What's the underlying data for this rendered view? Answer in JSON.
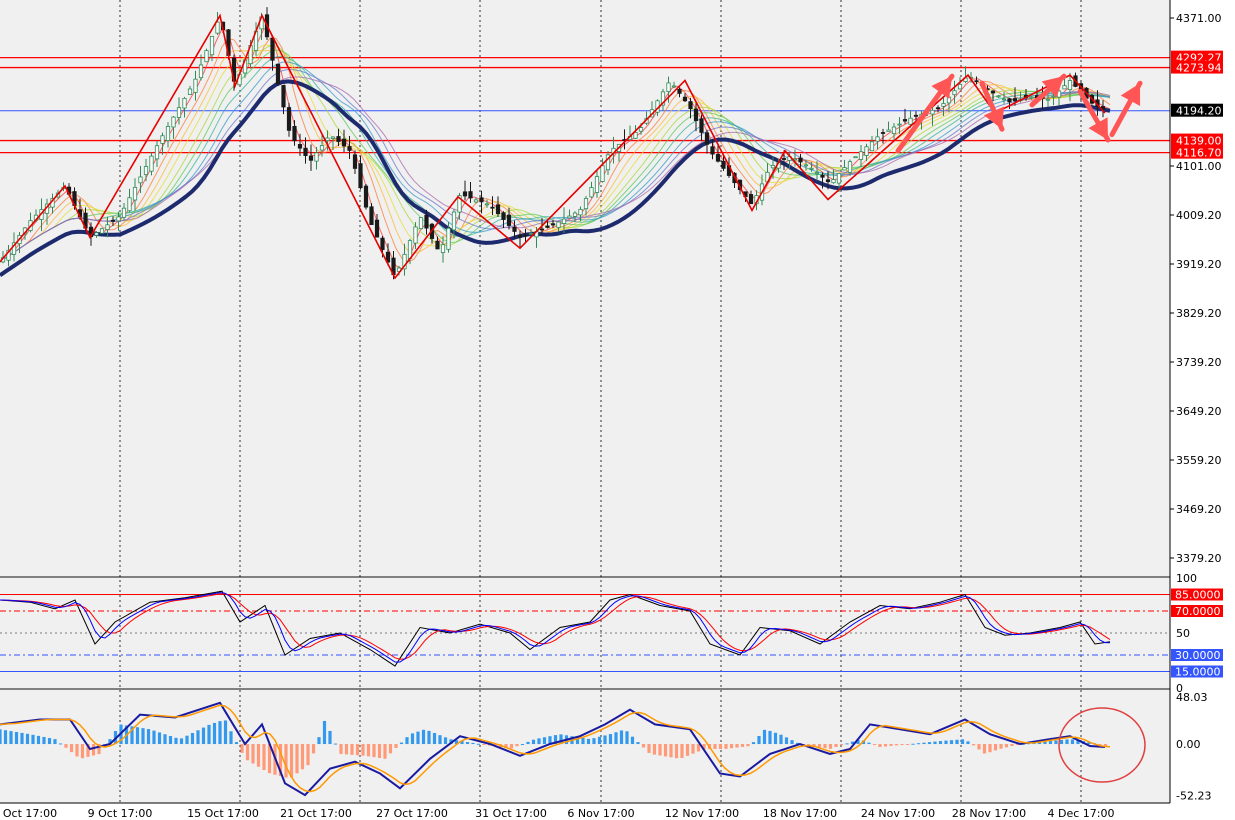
{
  "colors": {
    "background": "#f0f0f0",
    "axis_background": "#ffffff",
    "grid": "#000000",
    "bull_candle": "#2e8b57",
    "bear_candle": "#1a1a1a",
    "baseline_ma": "#1e2a6e",
    "zigzag": "#e60000",
    "level_red": "#ff0000",
    "level_blue": "#3355ff",
    "arrow": "#ff5555",
    "stoch_main": "#000000",
    "stoch_signal": "#ff0000",
    "stoch_mid": "#0000ff",
    "macd_line": "#1a1aa0",
    "macd_signal": "#ff9900",
    "hist_pos": "#3399ee",
    "hist_neg": "#ff9977"
  },
  "chart_data": {
    "type": "candlestick",
    "x_labels": [
      "Oct 17:00",
      "9 Oct 17:00",
      "15 Oct 17:00",
      "21 Oct 17:00",
      "27 Oct 17:00",
      "31 Oct 17:00",
      "6 Nov 17:00",
      "12 Nov 17:00",
      "18 Nov 17:00",
      "24 Nov 17:00",
      "28 Nov 17:00",
      "4 Dec 17:00"
    ],
    "price_axis": {
      "ticks": [
        "4371.00",
        "4101.00",
        "4009.20",
        "3919.20",
        "3829.20",
        "3739.20",
        "3649.20",
        "3559.20",
        "3469.20",
        "3379.20"
      ],
      "range": [
        3334.2,
        4398.8
      ]
    },
    "price_path": [
      [
        0,
        3915
      ],
      [
        30,
        3990
      ],
      [
        65,
        4055
      ],
      [
        90,
        3960
      ],
      [
        120,
        4000
      ],
      [
        160,
        4140
      ],
      [
        195,
        4250
      ],
      [
        220,
        4370
      ],
      [
        235,
        4240
      ],
      [
        262,
        4370
      ],
      [
        290,
        4150
      ],
      [
        310,
        4100
      ],
      [
        330,
        4150
      ],
      [
        350,
        4120
      ],
      [
        370,
        3990
      ],
      [
        395,
        3885
      ],
      [
        420,
        4000
      ],
      [
        440,
        3930
      ],
      [
        460,
        4040
      ],
      [
        490,
        4020
      ],
      [
        520,
        3960
      ],
      [
        550,
        3980
      ],
      [
        580,
        4010
      ],
      [
        610,
        4120
      ],
      [
        640,
        4160
      ],
      [
        670,
        4250
      ],
      [
        690,
        4200
      ],
      [
        710,
        4120
      ],
      [
        735,
        4060
      ],
      [
        752,
        4020
      ],
      [
        770,
        4090
      ],
      [
        790,
        4110
      ],
      [
        810,
        4090
      ],
      [
        830,
        4060
      ],
      [
        850,
        4100
      ],
      [
        880,
        4150
      ],
      [
        910,
        4180
      ],
      [
        940,
        4200
      ],
      [
        968,
        4260
      ],
      [
        990,
        4230
      ],
      [
        1010,
        4210
      ],
      [
        1030,
        4220
      ],
      [
        1050,
        4215
      ],
      [
        1070,
        4250
      ],
      [
        1090,
        4210
      ],
      [
        1105,
        4195
      ]
    ],
    "zigzag": [
      [
        0,
        3915
      ],
      [
        65,
        4055
      ],
      [
        90,
        3960
      ],
      [
        220,
        4370
      ],
      [
        235,
        4240
      ],
      [
        262,
        4370
      ],
      [
        395,
        3885
      ],
      [
        458,
        4035
      ],
      [
        520,
        3940
      ],
      [
        685,
        4250
      ],
      [
        752,
        4010
      ],
      [
        785,
        4120
      ],
      [
        828,
        4030
      ],
      [
        968,
        4260
      ],
      [
        995,
        4190
      ],
      [
        1070,
        4260
      ],
      [
        1105,
        4190
      ]
    ],
    "resistance_levels": [
      {
        "label": "4292.27",
        "value": 4292.27,
        "color": "red"
      },
      {
        "label": "4273.94",
        "value": 4273.94,
        "color": "red"
      },
      {
        "label": "4194.20",
        "value": 4194.2,
        "color": "blue"
      },
      {
        "label": "4139.00",
        "value": 4139.0,
        "color": "red"
      },
      {
        "label": "4116.70",
        "value": 4116.7,
        "color": "red"
      }
    ],
    "arrows": [
      {
        "from": [
          898,
          4120
        ],
        "to": [
          952,
          4258
        ]
      },
      {
        "from": [
          982,
          4245
        ],
        "to": [
          1002,
          4160
        ]
      },
      {
        "from": [
          1032,
          4205
        ],
        "to": [
          1064,
          4258
        ]
      },
      {
        "from": [
          1080,
          4230
        ],
        "to": [
          1108,
          4140
        ]
      },
      {
        "from": [
          1112,
          4150
        ],
        "to": [
          1140,
          4245
        ]
      }
    ],
    "stochastic": {
      "axis_ticks": [
        "100",
        "50",
        "0"
      ],
      "levels": [
        {
          "label": "85.0000",
          "value": 85,
          "color": "red",
          "style": "solid"
        },
        {
          "label": "70.0000",
          "value": 70,
          "color": "red",
          "style": "dashdot"
        },
        {
          "label": "30.0000",
          "value": 30,
          "color": "blue",
          "style": "dashdot"
        },
        {
          "label": "15.0000",
          "value": 15,
          "color": "blue",
          "style": "solid"
        }
      ],
      "series": [
        [
          0,
          80
        ],
        [
          30,
          78
        ],
        [
          55,
          72
        ],
        [
          75,
          80
        ],
        [
          95,
          40
        ],
        [
          115,
          60
        ],
        [
          150,
          78
        ],
        [
          185,
          82
        ],
        [
          222,
          88
        ],
        [
          240,
          60
        ],
        [
          265,
          75
        ],
        [
          285,
          30
        ],
        [
          310,
          45
        ],
        [
          340,
          50
        ],
        [
          370,
          35
        ],
        [
          395,
          20
        ],
        [
          420,
          55
        ],
        [
          450,
          50
        ],
        [
          480,
          58
        ],
        [
          510,
          50
        ],
        [
          530,
          35
        ],
        [
          560,
          55
        ],
        [
          590,
          60
        ],
        [
          610,
          80
        ],
        [
          630,
          85
        ],
        [
          660,
          75
        ],
        [
          690,
          70
        ],
        [
          710,
          40
        ],
        [
          740,
          30
        ],
        [
          760,
          55
        ],
        [
          790,
          52
        ],
        [
          820,
          40
        ],
        [
          850,
          60
        ],
        [
          880,
          75
        ],
        [
          910,
          72
        ],
        [
          940,
          78
        ],
        [
          965,
          85
        ],
        [
          985,
          55
        ],
        [
          1005,
          48
        ],
        [
          1030,
          50
        ],
        [
          1060,
          55
        ],
        [
          1080,
          60
        ],
        [
          1095,
          40
        ],
        [
          1110,
          42
        ]
      ]
    },
    "macd": {
      "axis_ticks": [
        "48.03",
        "0.00",
        "-52.23"
      ],
      "range": [
        -52.23,
        48.03
      ],
      "series": [
        [
          0,
          20
        ],
        [
          40,
          25
        ],
        [
          70,
          25
        ],
        [
          90,
          -5
        ],
        [
          110,
          0
        ],
        [
          140,
          30
        ],
        [
          175,
          27
        ],
        [
          220,
          42
        ],
        [
          245,
          0
        ],
        [
          262,
          20
        ],
        [
          285,
          -40
        ],
        [
          305,
          -52
        ],
        [
          330,
          -25
        ],
        [
          355,
          -18
        ],
        [
          380,
          -30
        ],
        [
          400,
          -45
        ],
        [
          430,
          -15
        ],
        [
          460,
          8
        ],
        [
          490,
          0
        ],
        [
          520,
          -12
        ],
        [
          550,
          0
        ],
        [
          580,
          8
        ],
        [
          605,
          20
        ],
        [
          630,
          35
        ],
        [
          655,
          20
        ],
        [
          690,
          15
        ],
        [
          720,
          -30
        ],
        [
          740,
          -33
        ],
        [
          770,
          -10
        ],
        [
          800,
          0
        ],
        [
          830,
          -10
        ],
        [
          850,
          -5
        ],
        [
          870,
          20
        ],
        [
          900,
          15
        ],
        [
          930,
          10
        ],
        [
          965,
          25
        ],
        [
          990,
          10
        ],
        [
          1020,
          0
        ],
        [
          1050,
          5
        ],
        [
          1070,
          8
        ],
        [
          1090,
          -2
        ],
        [
          1105,
          -3
        ]
      ],
      "histogram": [
        [
          0,
          15
        ],
        [
          30,
          10
        ],
        [
          55,
          5
        ],
        [
          80,
          -15
        ],
        [
          100,
          -10
        ],
        [
          120,
          20
        ],
        [
          150,
          15
        ],
        [
          180,
          5
        ],
        [
          210,
          20
        ],
        [
          225,
          25
        ],
        [
          245,
          -15
        ],
        [
          270,
          -30
        ],
        [
          290,
          -35
        ],
        [
          310,
          -20
        ],
        [
          325,
          25
        ],
        [
          340,
          -10
        ],
        [
          365,
          -12
        ],
        [
          385,
          -15
        ],
        [
          410,
          10
        ],
        [
          425,
          15
        ],
        [
          450,
          5
        ],
        [
          480,
          0
        ],
        [
          510,
          -5
        ],
        [
          535,
          5
        ],
        [
          560,
          10
        ],
        [
          590,
          5
        ],
        [
          610,
          10
        ],
        [
          625,
          15
        ],
        [
          650,
          -10
        ],
        [
          680,
          -15
        ],
        [
          705,
          -5
        ],
        [
          725,
          -5
        ],
        [
          750,
          -2
        ],
        [
          765,
          15
        ],
        [
          780,
          10
        ],
        [
          800,
          0
        ],
        [
          830,
          -5
        ],
        [
          860,
          5
        ],
        [
          880,
          -3
        ],
        [
          910,
          0
        ],
        [
          940,
          3
        ],
        [
          965,
          5
        ],
        [
          985,
          -10
        ],
        [
          1000,
          -5
        ],
        [
          1020,
          0
        ],
        [
          1050,
          3
        ],
        [
          1070,
          5
        ],
        [
          1090,
          2
        ],
        [
          1105,
          -2
        ]
      ],
      "circle_note": ""
    }
  }
}
